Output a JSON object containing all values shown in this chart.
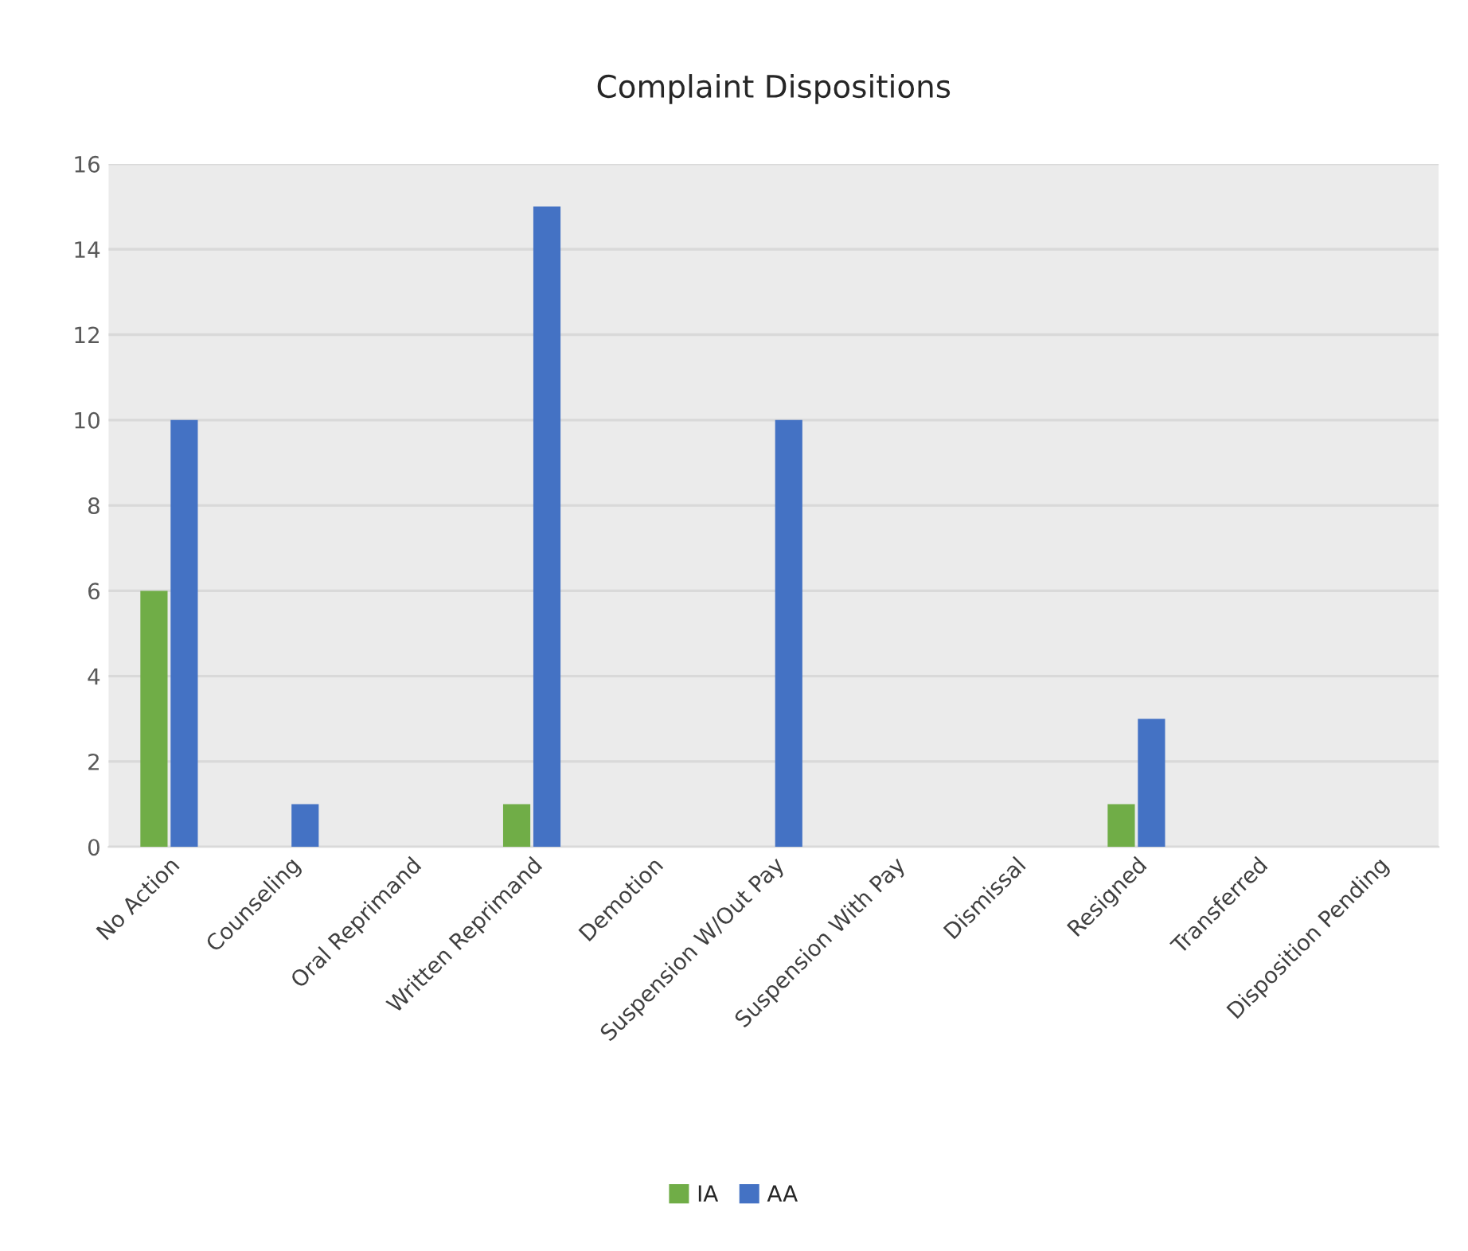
{
  "chart_data": {
    "type": "bar",
    "title": "Complaint Dispositions",
    "categories": [
      "No Action",
      "Counseling",
      "Oral Reprimand",
      "Written Reprimand",
      "Demotion",
      "Suspension W/Out Pay",
      "Suspension With Pay",
      "Dismissal",
      "Resigned",
      "Transferred",
      "Disposition Pending"
    ],
    "series": [
      {
        "name": "IA",
        "color": "#70ad47",
        "values": [
          6,
          0,
          0,
          1,
          0,
          0,
          0,
          0,
          1,
          0,
          0
        ]
      },
      {
        "name": "AA",
        "color": "#4472c4",
        "values": [
          10,
          1,
          0,
          15,
          0,
          10,
          0,
          0,
          3,
          0,
          0
        ]
      }
    ],
    "ylim": [
      0,
      16
    ],
    "yticks": [
      0,
      2,
      4,
      6,
      8,
      10,
      12,
      14,
      16
    ],
    "grid": "y",
    "legend": "bottom"
  }
}
